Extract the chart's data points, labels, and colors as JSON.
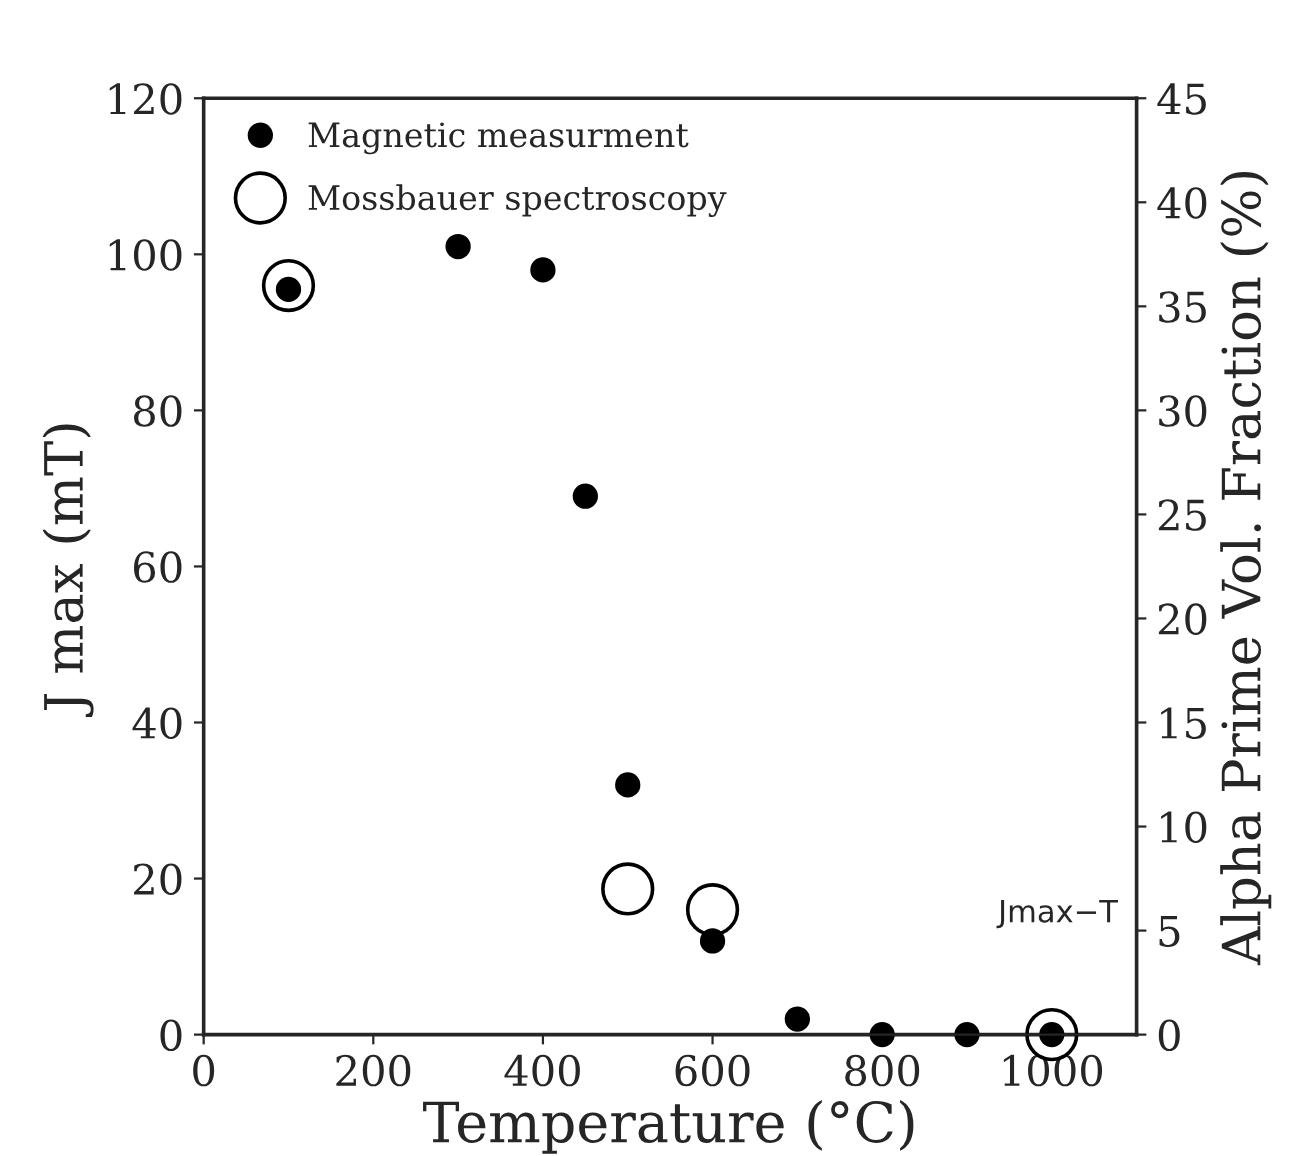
{
  "chart_data": {
    "type": "scatter",
    "xlabel": "Temperature (°C)",
    "ylabel": "J max (mT)",
    "y2label": "Alpha Prime Vol. Fraction (%)",
    "xlim": [
      0,
      1100
    ],
    "xticks": [
      0,
      200,
      400,
      600,
      800,
      1000
    ],
    "ylim": [
      0,
      120
    ],
    "yticks": [
      0,
      20,
      40,
      60,
      80,
      100,
      120
    ],
    "y2lim": [
      0,
      45
    ],
    "y2ticks": [
      0,
      5,
      10,
      15,
      20,
      25,
      30,
      35,
      40,
      45
    ],
    "legend": "top left",
    "grid": false,
    "annotations": [
      "Jmax−T"
    ],
    "series": [
      {
        "name": "Magnetic measurment",
        "color": "#000000",
        "marker": "circle",
        "x": [
          100,
          300,
          400,
          450,
          500,
          600,
          700,
          800,
          900,
          1000
        ],
        "values": [
          95.5,
          101,
          98,
          69,
          32,
          12,
          2,
          0,
          0,
          0
        ],
        "sizes": [
          0.19,
          0.19,
          0.19,
          0.19,
          0.19,
          0.19,
          0.19,
          0.19,
          0.19,
          0.19
        ]
      },
      {
        "name": "Mossbauer spectroscopy",
        "color": "#000000",
        "marker": "circle",
        "axis": "y2",
        "x": [
          100,
          500,
          600,
          1000
        ],
        "values": [
          36,
          7,
          6,
          0
        ],
        "sizes": [
          1,
          1,
          1,
          1
        ]
      }
    ]
  }
}
